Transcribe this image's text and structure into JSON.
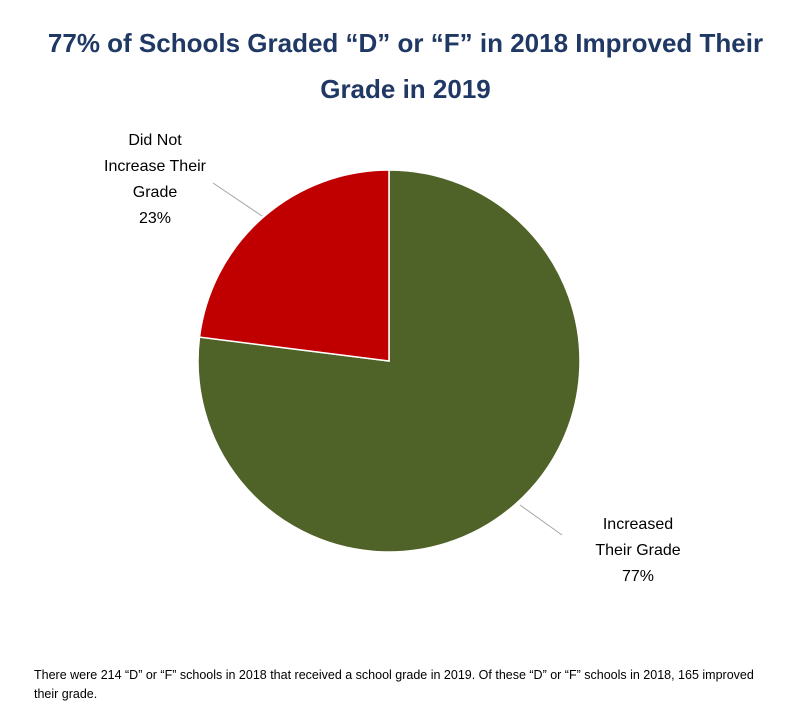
{
  "chart_data": {
    "type": "pie",
    "title": "77% of Schools Graded “D” or “F” in 2018 Improved Their Grade in 2019",
    "categories": [
      "Increased Their Grade",
      "Did Not Increase Their Grade"
    ],
    "values": [
      77,
      23
    ],
    "value_labels": [
      "77%",
      "23%"
    ],
    "colors": [
      "#4f6228",
      "#c00000"
    ],
    "footnote": "There were 214 “D” or “F” schools in 2018 that received a school grade in 2019. Of these “D” or “F” schools in 2018, 165 improved their grade."
  }
}
